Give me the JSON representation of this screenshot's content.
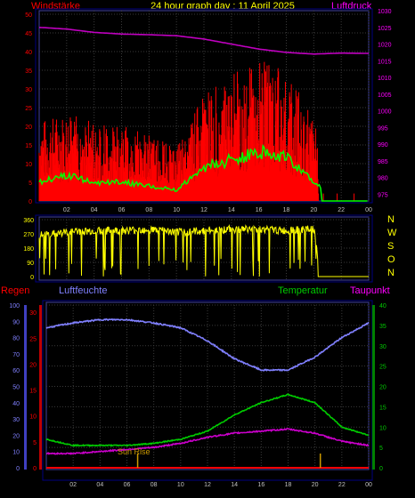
{
  "header": {
    "left_label": "Windstärke",
    "title": "24 hour graph day : 11 April 2025",
    "right_label": "Luftdruck"
  },
  "colors": {
    "background": "#000000",
    "frame": "#000080",
    "grid": "#3a3a3a",
    "wind_gust": "#ff0000",
    "wind_avg": "#00ff00",
    "calm": "#cceecc",
    "pressure": "#c000c0",
    "direction": "#ffff00",
    "humidity": "#8080ff",
    "temperature": "#00cc00",
    "dewpoint": "#cc00cc",
    "rain": "#ff0000",
    "sunrise": "#cc9900",
    "axis_left": "#ff0000",
    "axis_right": "#ff00ff",
    "axis_green": "#00cc00",
    "axis_blue": "#8080ff",
    "title": "#ffff00"
  },
  "x_ticks": [
    "02",
    "04",
    "06",
    "08",
    "10",
    "12",
    "14",
    "16",
    "18",
    "20",
    "22",
    "00"
  ],
  "wind_panel": {
    "left_ticks": [
      "0",
      "5",
      "10",
      "15",
      "20",
      "25",
      "30",
      "35",
      "40",
      "45",
      "50"
    ],
    "right_ticks": [
      "975",
      "980",
      "985",
      "990",
      "995",
      "1000",
      "1005",
      "1010",
      "1015",
      "1020",
      "1025",
      "1030"
    ]
  },
  "direction_panel": {
    "left_ticks": [
      "0",
      "90",
      "180",
      "270",
      "360"
    ],
    "right_labels": [
      "N",
      "W",
      "S",
      "O",
      "N"
    ]
  },
  "temp_panel": {
    "labels": {
      "rain": "Regen",
      "humidity": "Luftfeuchte",
      "temperature": "Temperatur",
      "dewpoint": "Taupunkt"
    },
    "humidity_ticks": [
      "0",
      "10",
      "20",
      "30",
      "40",
      "50",
      "60",
      "70",
      "80",
      "90",
      "100"
    ],
    "rain_ticks": [
      "0",
      "5",
      "10",
      "15",
      "20",
      "25",
      "30"
    ],
    "temp_ticks": [
      "0",
      "5",
      "10",
      "15",
      "20",
      "25",
      "30",
      "35",
      "40"
    ],
    "sunrise_label": "Sun Rise"
  },
  "chart_data": [
    {
      "type": "line",
      "title": "24 hour graph day : 11 April 2025",
      "ylabel": "Windstärke",
      "y2label": "Luftdruck",
      "x_hours": [
        0,
        2,
        4,
        6,
        8,
        10,
        12,
        14,
        16,
        18,
        20,
        22,
        24
      ],
      "ylim": [
        0,
        50
      ],
      "y2lim": [
        973,
        1030
      ],
      "series": [
        {
          "name": "Luftdruck",
          "axis": "right",
          "values": [
            1025,
            1024.5,
            1023.5,
            1023,
            1022.8,
            1022.5,
            1021.5,
            1020,
            1018.5,
            1017.5,
            1017,
            1017.3,
            1017.2
          ]
        },
        {
          "name": "Windstärke",
          "values": [
            5,
            7,
            5,
            5,
            4,
            3,
            9,
            11,
            13,
            12,
            5,
            0,
            0
          ]
        },
        {
          "values": [
            18,
            20,
            18,
            17,
            15,
            12,
            24,
            28,
            33,
            30,
            18,
            1,
            2
          ]
        }
      ]
    },
    {
      "type": "scatter",
      "ylim": [
        0,
        360
      ],
      "x_hours": [
        0,
        2,
        4,
        6,
        8,
        10,
        12,
        14,
        16,
        18,
        20,
        20.5,
        22,
        24
      ],
      "values": [
        260,
        280,
        290,
        290,
        300,
        280,
        290,
        300,
        300,
        290,
        300,
        0,
        0,
        0
      ]
    },
    {
      "type": "line",
      "ylim": [
        0,
        100
      ],
      "y2lim": [
        0,
        40
      ],
      "x_hours": [
        0,
        2,
        4,
        6,
        8,
        10,
        12,
        14,
        16,
        18,
        20,
        22,
        24
      ],
      "series": [
        {
          "name": "Luftfeuchte",
          "axis": "left",
          "values": [
            86,
            89,
            91,
            91,
            89,
            86,
            78,
            67,
            60,
            60,
            68,
            80,
            89
          ]
        },
        {
          "name": "Temperatur",
          "axis": "right",
          "values": [
            7,
            5.5,
            5.5,
            5.5,
            6,
            7,
            9,
            13,
            16,
            18,
            16,
            10,
            8
          ]
        },
        {
          "name": "Taupunkt",
          "axis": "right",
          "values": [
            3.5,
            3.5,
            4,
            4.5,
            5,
            6,
            7.5,
            8.5,
            9,
            9.5,
            8.5,
            6.5,
            5.5
          ]
        },
        {
          "name": "Regen",
          "axis": "left",
          "values": [
            0,
            0,
            0,
            0,
            0,
            0,
            0,
            0,
            0,
            0,
            0,
            0,
            0
          ]
        }
      ]
    }
  ]
}
